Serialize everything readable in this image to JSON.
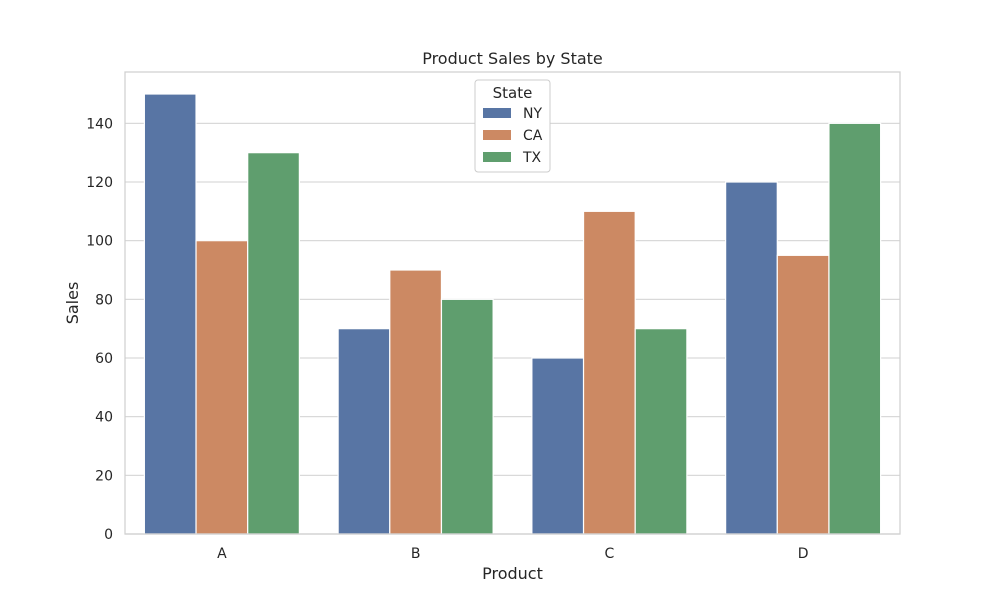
{
  "chart_data": {
    "type": "bar",
    "title": "Product Sales by State",
    "xlabel": "Product",
    "ylabel": "Sales",
    "categories": [
      "A",
      "B",
      "C",
      "D"
    ],
    "series": [
      {
        "name": "NY",
        "values": [
          150,
          70,
          60,
          120
        ],
        "color": "#5875a4"
      },
      {
        "name": "CA",
        "values": [
          100,
          90,
          110,
          95
        ],
        "color": "#cc8963"
      },
      {
        "name": "TX",
        "values": [
          130,
          80,
          70,
          140
        ],
        "color": "#5f9e6e"
      }
    ],
    "ylim": [
      0,
      157.5
    ],
    "yticks": [
      0,
      20,
      40,
      60,
      80,
      100,
      120,
      140
    ],
    "grid": true,
    "legend": {
      "title": "State",
      "placement": "top-center"
    }
  }
}
